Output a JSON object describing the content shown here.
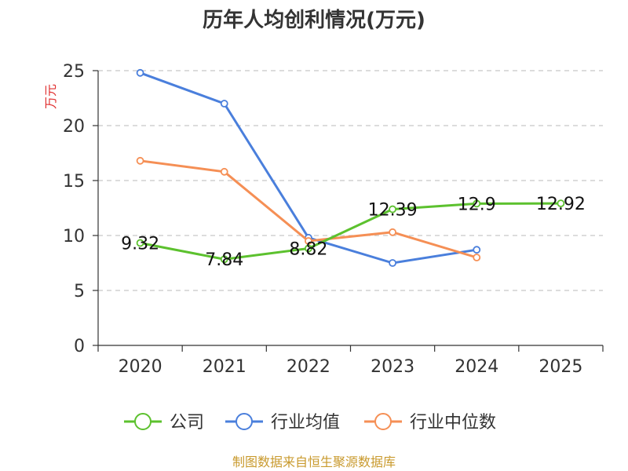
{
  "chart_data": {
    "type": "line",
    "title": "历年人均创利情况(万元)",
    "ylabel": "万元",
    "xlabel": "",
    "categories": [
      "2020",
      "2021",
      "2022",
      "2023",
      "2024",
      "2025"
    ],
    "ylim": [
      0,
      25
    ],
    "yticks": [
      "0",
      "5",
      "10",
      "15",
      "20",
      "25"
    ],
    "grid": true,
    "legend_position": "bottom",
    "series": [
      {
        "name": "公司",
        "color": "#5cc12e",
        "values": [
          9.32,
          7.84,
          8.82,
          12.39,
          12.9,
          12.92
        ],
        "labels": [
          "9.32",
          "7.84",
          "8.82",
          "12.39",
          "12.9",
          "12.92"
        ]
      },
      {
        "name": "行业均值",
        "color": "#4a7fdc",
        "values": [
          24.8,
          22.0,
          9.8,
          7.5,
          8.7,
          null
        ],
        "labels": []
      },
      {
        "name": "行业中位数",
        "color": "#f58f55",
        "values": [
          16.8,
          15.8,
          9.5,
          10.3,
          8.0,
          null
        ],
        "labels": []
      }
    ]
  },
  "source": {
    "text": "制图数据来自恒生聚源数据库",
    "color": "#c99a2e"
  },
  "ylabel_color": "#e03030"
}
